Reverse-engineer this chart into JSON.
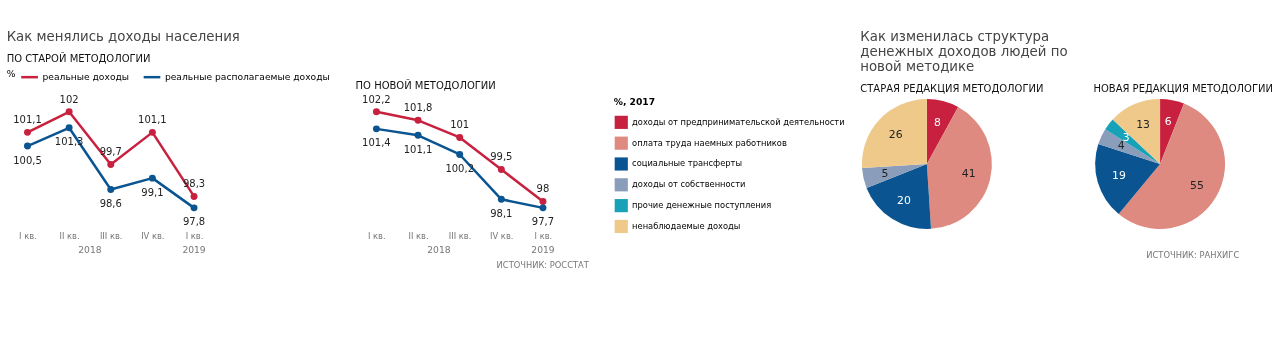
{
  "chart_data": [
    {
      "type": "line",
      "title": "Как менялись доходы населения",
      "subtitle": "ПО СТАРОЙ МЕТОДОЛОГИИ",
      "legend_title": "%",
      "legend": "top",
      "marker": "circle",
      "categories": [
        "I кв.",
        "II кв.",
        "III кв.",
        "IV кв.",
        "I кв."
      ],
      "annotations": [
        "2018",
        "2019"
      ],
      "series": [
        {
          "name": "реальные доходы",
          "color": "#c8213f",
          "values": [
            101.1,
            102,
            99.7,
            101.1,
            98.3
          ],
          "value_labels": [
            "101,1",
            "102",
            "99,7",
            "101,1",
            "98,3"
          ]
        },
        {
          "name": "реальные располагаемые доходы",
          "color": "#0a5591",
          "values": [
            100.5,
            101.3,
            98.6,
            99.1,
            97.8
          ],
          "value_labels": [
            "100,5",
            "101,3",
            "98,6",
            "99,1",
            "97,8"
          ]
        }
      ]
    },
    {
      "type": "line",
      "subtitle": "ПО НОВОЙ МЕТОДОЛОГИИ",
      "marker": "circle",
      "categories": [
        "I кв.",
        "II кв.",
        "III кв.",
        "IV кв.",
        "I кв."
      ],
      "annotations": [
        "2018",
        "2019",
        "ИСТОЧНИК: РОССТАТ"
      ],
      "series": [
        {
          "color": "#c8213f",
          "values": [
            102.2,
            101.8,
            101,
            99.5,
            98
          ],
          "value_labels": [
            "102,2",
            "101,8",
            "101",
            "99,5",
            "98"
          ]
        },
        {
          "color": "#0a5591",
          "values": [
            101.4,
            101.1,
            100.2,
            98.1,
            97.7
          ],
          "value_labels": [
            "101,4",
            "101,1",
            "100,2",
            "98,1",
            "97,7"
          ]
        }
      ]
    },
    {
      "type": "pie",
      "title": "Как изменилась структура денежных доходов людей по новой методике",
      "legend_title": "%, 2017",
      "subtitle": "СТАРАЯ РЕДАКЦИЯ МЕТОДОЛОГИИ",
      "legend": "left",
      "data_labels": true,
      "categories": [
        "доходы от предпринимательской деятельности",
        "оплата труда наемных работников",
        "социальные трансферты",
        "доходы от собственности",
        "прочие денежные поступления",
        "ненаблюдаемые доходы"
      ],
      "values": [
        8,
        41,
        20,
        5,
        0,
        26
      ],
      "colors": [
        "#c8213f",
        "#de8a80",
        "#0a5591",
        "#8a9dba",
        "#17a2b8",
        "#eec98a"
      ]
    },
    {
      "type": "pie",
      "subtitle": "НОВАЯ РЕДАКЦИЯ МЕТОДОЛОГИИ",
      "data_labels": true,
      "annotations": [
        "ИСТОЧНИК: РАНХИГС"
      ],
      "categories": [
        null,
        null,
        null,
        null,
        null,
        null
      ],
      "values": [
        6,
        55,
        19,
        4,
        3,
        13
      ],
      "colors": [
        "#c8213f",
        "#de8a80",
        "#0a5591",
        "#8a9dba",
        "#17a2b8",
        "#eec98a"
      ]
    }
  ]
}
